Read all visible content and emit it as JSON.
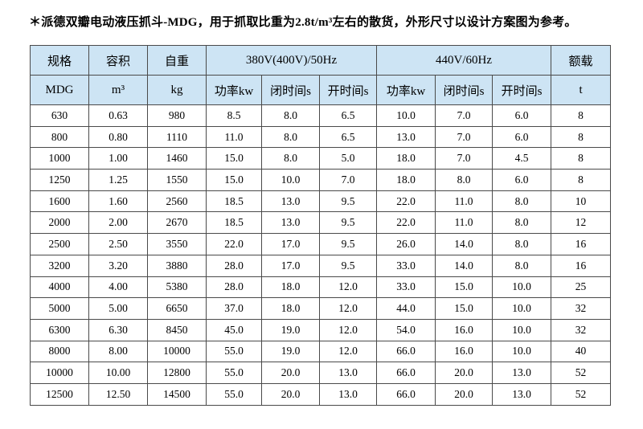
{
  "note": "＊派德双瓣电动液压抓斗-MDG，用于抓取比重为2.8t/m³左右的散货，外形尺寸以设计方案图为参考。",
  "colors": {
    "header_bg": "#cde4f4",
    "border": "#4a4a4a",
    "text": "#000000"
  },
  "table": {
    "header": {
      "spec": "规格",
      "volume": "容积",
      "weight": "自重",
      "group_380": "380V(400V)/50Hz",
      "group_440": "440V/60Hz",
      "load": "额载"
    },
    "units": {
      "model": "MDG",
      "volume": "m³",
      "weight": "kg",
      "power_380": "功率kw",
      "close_380": "闭时间s",
      "open_380": "开时间s",
      "power_440": "功率kw",
      "close_440": "闭时间s",
      "open_440": "开时间s",
      "load": "t"
    },
    "rows": [
      [
        "630",
        "0.63",
        "980",
        "8.5",
        "8.0",
        "6.5",
        "10.0",
        "7.0",
        "6.0",
        "8"
      ],
      [
        "800",
        "0.80",
        "1110",
        "11.0",
        "8.0",
        "6.5",
        "13.0",
        "7.0",
        "6.0",
        "8"
      ],
      [
        "1000",
        "1.00",
        "1460",
        "15.0",
        "8.0",
        "5.0",
        "18.0",
        "7.0",
        "4.5",
        "8"
      ],
      [
        "1250",
        "1.25",
        "1550",
        "15.0",
        "10.0",
        "7.0",
        "18.0",
        "8.0",
        "6.0",
        "8"
      ],
      [
        "1600",
        "1.60",
        "2560",
        "18.5",
        "13.0",
        "9.5",
        "22.0",
        "11.0",
        "8.0",
        "10"
      ],
      [
        "2000",
        "2.00",
        "2670",
        "18.5",
        "13.0",
        "9.5",
        "22.0",
        "11.0",
        "8.0",
        "12"
      ],
      [
        "2500",
        "2.50",
        "3550",
        "22.0",
        "17.0",
        "9.5",
        "26.0",
        "14.0",
        "8.0",
        "16"
      ],
      [
        "3200",
        "3.20",
        "3880",
        "28.0",
        "17.0",
        "9.5",
        "33.0",
        "14.0",
        "8.0",
        "16"
      ],
      [
        "4000",
        "4.00",
        "5380",
        "28.0",
        "18.0",
        "12.0",
        "33.0",
        "15.0",
        "10.0",
        "25"
      ],
      [
        "5000",
        "5.00",
        "6650",
        "37.0",
        "18.0",
        "12.0",
        "44.0",
        "15.0",
        "10.0",
        "32"
      ],
      [
        "6300",
        "6.30",
        "8450",
        "45.0",
        "19.0",
        "12.0",
        "54.0",
        "16.0",
        "10.0",
        "32"
      ],
      [
        "8000",
        "8.00",
        "10000",
        "55.0",
        "19.0",
        "12.0",
        "66.0",
        "16.0",
        "10.0",
        "40"
      ],
      [
        "10000",
        "10.00",
        "12800",
        "55.0",
        "20.0",
        "13.0",
        "66.0",
        "20.0",
        "13.0",
        "52"
      ],
      [
        "12500",
        "12.50",
        "14500",
        "55.0",
        "20.0",
        "13.0",
        "66.0",
        "20.0",
        "13.0",
        "52"
      ]
    ]
  }
}
